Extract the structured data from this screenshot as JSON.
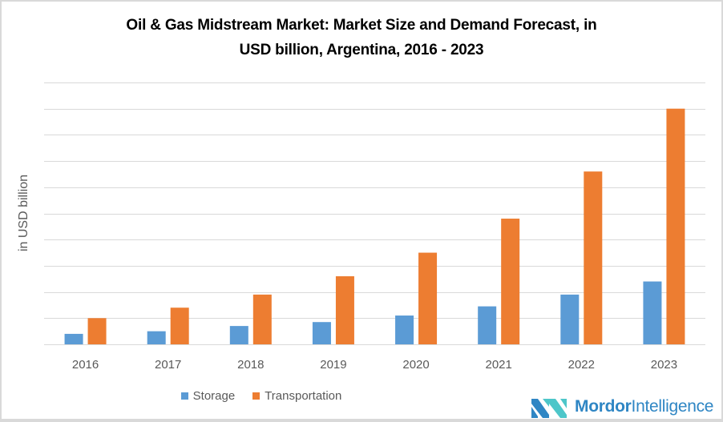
{
  "chart_data": {
    "type": "bar",
    "title": "Oil & Gas Midstream Market: Market Size and Demand Forecast, in USD billion, Argentina, 2016 - 2023",
    "title_lines": [
      "Oil & Gas Midstream Market: Market Size and Demand Forecast, in",
      "USD billion, Argentina, 2016 - 2023"
    ],
    "xlabel": "",
    "ylabel": "in USD billion",
    "categories": [
      "2016",
      "2017",
      "2018",
      "2019",
      "2020",
      "2021",
      "2022",
      "2023"
    ],
    "series": [
      {
        "name": "Storage",
        "color": "#5b9bd5",
        "values": [
          0.4,
          0.5,
          0.7,
          0.85,
          1.1,
          1.45,
          1.9,
          2.4
        ]
      },
      {
        "name": "Transportation",
        "color": "#ed7d31",
        "values": [
          1.0,
          1.4,
          1.9,
          2.6,
          3.5,
          4.8,
          6.6,
          9.0
        ]
      }
    ],
    "ylim": [
      0,
      10
    ],
    "y_gridlines": 10,
    "y_tick_labels_shown": false,
    "grid": true,
    "legend": "bottom"
  },
  "branding": {
    "logo_bold": "Mordor",
    "logo_regular": "Intelligence"
  }
}
